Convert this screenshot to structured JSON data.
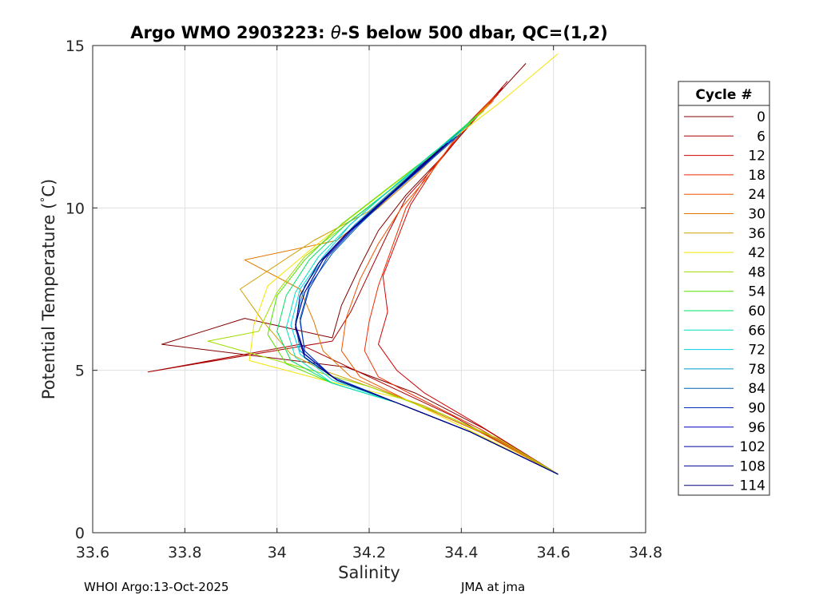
{
  "chart_data": {
    "type": "line",
    "title_prefix": "Argo WMO 2903223: ",
    "title_symbol": "θ",
    "title_suffix": "-S below 500 dbar,  QC=(1,2)",
    "xlabel": "Salinity",
    "ylabel_text": "Potential Temperature (",
    "ylabel_degree": "°",
    "ylabel_unit": "C)",
    "xlim": [
      33.6,
      34.8
    ],
    "ylim": [
      0,
      15
    ],
    "xticks": [
      33.6,
      33.8,
      34.0,
      34.2,
      34.4,
      34.6,
      34.8
    ],
    "xtick_labels": [
      "33.6",
      "33.8",
      "34",
      "34.2",
      "34.4",
      "34.6",
      "34.8"
    ],
    "yticks": [
      0,
      5,
      10,
      15
    ],
    "ytick_labels": [
      "0",
      "5",
      "10",
      "15"
    ],
    "grid": true,
    "legend_title": "Cycle #",
    "legend_position": "right-outside",
    "series": [
      {
        "name": "0",
        "color": "#800000",
        "points": [
          [
            34.54,
            14.45
          ],
          [
            34.44,
            12.9
          ],
          [
            34.36,
            11.6
          ],
          [
            34.28,
            10.4
          ],
          [
            34.22,
            9.3
          ],
          [
            34.18,
            8.2
          ],
          [
            34.14,
            7.0
          ],
          [
            34.12,
            6.0
          ],
          [
            33.93,
            6.6
          ],
          [
            33.75,
            5.8
          ],
          [
            34.15,
            5.1
          ],
          [
            34.3,
            4.3
          ],
          [
            34.45,
            3.2
          ],
          [
            34.61,
            1.8
          ]
        ]
      },
      {
        "name": "6",
        "color": "#aa0000",
        "points": [
          [
            34.5,
            13.9
          ],
          [
            34.42,
            12.6
          ],
          [
            34.35,
            11.4
          ],
          [
            34.28,
            10.3
          ],
          [
            34.24,
            9.2
          ],
          [
            34.2,
            8.0
          ],
          [
            34.16,
            6.8
          ],
          [
            34.12,
            5.9
          ],
          [
            33.72,
            4.95
          ],
          [
            34.05,
            5.8
          ],
          [
            34.2,
            4.8
          ],
          [
            34.38,
            3.6
          ],
          [
            34.61,
            1.8
          ]
        ]
      },
      {
        "name": "12",
        "color": "#d40000",
        "points": [
          [
            34.49,
            13.7
          ],
          [
            34.4,
            12.4
          ],
          [
            34.34,
            11.2
          ],
          [
            34.29,
            10.1
          ],
          [
            34.26,
            9.0
          ],
          [
            34.23,
            7.9
          ],
          [
            34.24,
            6.8
          ],
          [
            34.22,
            5.8
          ],
          [
            34.26,
            5.0
          ],
          [
            34.32,
            4.3
          ],
          [
            34.44,
            3.3
          ],
          [
            34.61,
            1.8
          ]
        ]
      },
      {
        "name": "18",
        "color": "#f22a00",
        "points": [
          [
            34.48,
            13.5
          ],
          [
            34.4,
            12.3
          ],
          [
            34.33,
            11.1
          ],
          [
            34.28,
            10.0
          ],
          [
            34.25,
            8.8
          ],
          [
            34.22,
            7.6
          ],
          [
            34.2,
            6.5
          ],
          [
            34.19,
            5.6
          ],
          [
            34.22,
            4.8
          ],
          [
            34.3,
            4.2
          ],
          [
            34.44,
            3.2
          ],
          [
            34.61,
            1.8
          ]
        ]
      },
      {
        "name": "24",
        "color": "#f05200",
        "points": [
          [
            34.47,
            13.4
          ],
          [
            34.39,
            12.2
          ],
          [
            34.33,
            11.0
          ],
          [
            34.27,
            10.0
          ],
          [
            34.22,
            8.9
          ],
          [
            34.18,
            7.8
          ],
          [
            34.15,
            6.6
          ],
          [
            34.14,
            5.6
          ],
          [
            34.18,
            4.8
          ],
          [
            34.28,
            4.1
          ],
          [
            34.44,
            3.1
          ],
          [
            34.61,
            1.8
          ]
        ]
      },
      {
        "name": "30",
        "color": "#e07800",
        "points": [
          [
            34.47,
            13.3
          ],
          [
            34.38,
            12.1
          ],
          [
            34.3,
            11.0
          ],
          [
            34.22,
            10.0
          ],
          [
            34.13,
            9.0
          ],
          [
            33.93,
            8.4
          ],
          [
            34.05,
            7.5
          ],
          [
            34.08,
            6.5
          ],
          [
            34.1,
            5.6
          ],
          [
            34.16,
            4.8
          ],
          [
            34.28,
            4.1
          ],
          [
            34.44,
            3.1
          ],
          [
            34.61,
            1.8
          ]
        ]
      },
      {
        "name": "36",
        "color": "#d0a000",
        "points": [
          [
            34.46,
            13.2
          ],
          [
            34.37,
            12.0
          ],
          [
            34.28,
            10.9
          ],
          [
            34.2,
            9.9
          ],
          [
            34.08,
            9.0
          ],
          [
            33.92,
            7.5
          ],
          [
            33.97,
            6.5
          ],
          [
            34.03,
            5.5
          ],
          [
            34.1,
            5.0
          ],
          [
            34.2,
            4.5
          ],
          [
            34.32,
            3.9
          ],
          [
            34.46,
            3.0
          ],
          [
            34.61,
            1.8
          ]
        ]
      },
      {
        "name": "42",
        "color": "#f5e400",
        "points": [
          [
            34.61,
            14.75
          ],
          [
            34.48,
            13.2
          ],
          [
            34.36,
            11.9
          ],
          [
            34.26,
            10.8
          ],
          [
            34.16,
            9.7
          ],
          [
            34.08,
            8.8
          ],
          [
            33.98,
            7.6
          ],
          [
            33.95,
            6.4
          ],
          [
            33.94,
            5.3
          ],
          [
            34.1,
            4.7
          ],
          [
            34.28,
            4.1
          ],
          [
            34.44,
            3.0
          ],
          [
            34.61,
            1.8
          ]
        ]
      },
      {
        "name": "48",
        "color": "#a0dc00",
        "points": [
          [
            34.45,
            13.0
          ],
          [
            34.36,
            11.9
          ],
          [
            34.26,
            10.7
          ],
          [
            34.16,
            9.6
          ],
          [
            34.06,
            8.5
          ],
          [
            34.0,
            7.4
          ],
          [
            33.96,
            6.2
          ],
          [
            33.85,
            5.9
          ],
          [
            34.05,
            5.1
          ],
          [
            34.2,
            4.5
          ],
          [
            34.35,
            3.7
          ],
          [
            34.48,
            2.9
          ],
          [
            34.61,
            1.8
          ]
        ]
      },
      {
        "name": "54",
        "color": "#50e000",
        "points": [
          [
            34.44,
            12.9
          ],
          [
            34.35,
            11.8
          ],
          [
            34.24,
            10.6
          ],
          [
            34.14,
            9.5
          ],
          [
            34.06,
            8.4
          ],
          [
            34.0,
            7.3
          ],
          [
            33.98,
            6.1
          ],
          [
            34.02,
            5.2
          ],
          [
            34.12,
            4.6
          ],
          [
            34.26,
            4.0
          ],
          [
            34.42,
            3.1
          ],
          [
            34.61,
            1.8
          ]
        ]
      },
      {
        "name": "60",
        "color": "#00e060",
        "points": [
          [
            34.43,
            12.8
          ],
          [
            34.34,
            11.7
          ],
          [
            34.24,
            10.5
          ],
          [
            34.15,
            9.5
          ],
          [
            34.07,
            8.4
          ],
          [
            34.02,
            7.3
          ],
          [
            34.0,
            6.2
          ],
          [
            34.03,
            5.3
          ],
          [
            34.12,
            4.6
          ],
          [
            34.26,
            4.0
          ],
          [
            34.42,
            3.1
          ],
          [
            34.61,
            1.8
          ]
        ]
      },
      {
        "name": "66",
        "color": "#00e0c0",
        "points": [
          [
            34.42,
            12.6
          ],
          [
            34.33,
            11.6
          ],
          [
            34.24,
            10.5
          ],
          [
            34.16,
            9.5
          ],
          [
            34.09,
            8.5
          ],
          [
            34.04,
            7.4
          ],
          [
            34.02,
            6.3
          ],
          [
            34.04,
            5.4
          ],
          [
            34.12,
            4.6
          ],
          [
            34.26,
            4.0
          ],
          [
            34.42,
            3.1
          ],
          [
            34.61,
            1.8
          ]
        ]
      },
      {
        "name": "72",
        "color": "#00d0e8",
        "points": [
          [
            34.41,
            12.5
          ],
          [
            34.33,
            11.5
          ],
          [
            34.24,
            10.5
          ],
          [
            34.16,
            9.5
          ],
          [
            34.1,
            8.5
          ],
          [
            34.05,
            7.5
          ],
          [
            34.03,
            6.4
          ],
          [
            34.05,
            5.5
          ],
          [
            34.12,
            4.7
          ],
          [
            34.26,
            4.0
          ],
          [
            34.42,
            3.1
          ],
          [
            34.61,
            1.8
          ]
        ]
      },
      {
        "name": "78",
        "color": "#0098d0",
        "points": [
          [
            34.4,
            12.4
          ],
          [
            34.32,
            11.4
          ],
          [
            34.24,
            10.4
          ],
          [
            34.17,
            9.5
          ],
          [
            34.11,
            8.6
          ],
          [
            34.06,
            7.6
          ],
          [
            34.04,
            6.5
          ],
          [
            34.05,
            5.6
          ],
          [
            34.12,
            4.8
          ],
          [
            34.26,
            4.0
          ],
          [
            34.42,
            3.1
          ],
          [
            34.61,
            1.8
          ]
        ]
      },
      {
        "name": "84",
        "color": "#0060b0",
        "points": [
          [
            34.4,
            12.3
          ],
          [
            34.32,
            11.3
          ],
          [
            34.24,
            10.3
          ],
          [
            34.18,
            9.5
          ],
          [
            34.12,
            8.6
          ],
          [
            34.07,
            7.6
          ],
          [
            34.05,
            6.6
          ],
          [
            34.06,
            5.6
          ],
          [
            34.12,
            4.8
          ],
          [
            34.26,
            4.0
          ],
          [
            34.42,
            3.1
          ],
          [
            34.61,
            1.8
          ]
        ]
      },
      {
        "name": "90",
        "color": "#0030c0",
        "points": [
          [
            34.39,
            12.2
          ],
          [
            34.31,
            11.3
          ],
          [
            34.24,
            10.3
          ],
          [
            34.17,
            9.4
          ],
          [
            34.11,
            8.5
          ],
          [
            34.07,
            7.5
          ],
          [
            34.05,
            6.5
          ],
          [
            34.06,
            5.6
          ],
          [
            34.12,
            4.8
          ],
          [
            34.26,
            4.0
          ],
          [
            34.42,
            3.1
          ],
          [
            34.61,
            1.8
          ]
        ]
      },
      {
        "name": "96",
        "color": "#0000c0",
        "points": [
          [
            34.38,
            12.1
          ],
          [
            34.31,
            11.2
          ],
          [
            34.23,
            10.2
          ],
          [
            34.16,
            9.3
          ],
          [
            34.1,
            8.4
          ],
          [
            34.06,
            7.4
          ],
          [
            34.04,
            6.4
          ],
          [
            34.06,
            5.5
          ],
          [
            34.13,
            4.7
          ],
          [
            34.26,
            4.0
          ],
          [
            34.42,
            3.1
          ],
          [
            34.61,
            1.8
          ]
        ]
      },
      {
        "name": "102",
        "color": "#0000a0",
        "points": [
          [
            34.37,
            12.0
          ],
          [
            34.3,
            11.1
          ],
          [
            34.23,
            10.2
          ],
          [
            34.16,
            9.3
          ],
          [
            34.1,
            8.4
          ],
          [
            34.06,
            7.4
          ],
          [
            34.04,
            6.4
          ],
          [
            34.06,
            5.5
          ],
          [
            34.13,
            4.7
          ],
          [
            34.26,
            4.0
          ],
          [
            34.42,
            3.1
          ],
          [
            34.61,
            1.8
          ]
        ]
      },
      {
        "name": "108",
        "color": "#000090",
        "points": [
          [
            34.37,
            12.0
          ],
          [
            34.3,
            11.1
          ],
          [
            34.22,
            10.1
          ],
          [
            34.15,
            9.2
          ],
          [
            34.09,
            8.3
          ],
          [
            34.05,
            7.3
          ],
          [
            34.04,
            6.3
          ],
          [
            34.06,
            5.4
          ],
          [
            34.13,
            4.7
          ],
          [
            34.26,
            4.0
          ],
          [
            34.42,
            3.1
          ],
          [
            34.61,
            1.8
          ]
        ]
      },
      {
        "name": "114",
        "color": "#000080",
        "points": [
          [
            34.36,
            11.9
          ],
          [
            34.29,
            11.0
          ],
          [
            34.22,
            10.1
          ],
          [
            34.15,
            9.2
          ],
          [
            34.09,
            8.3
          ],
          [
            34.05,
            7.3
          ],
          [
            34.04,
            6.3
          ],
          [
            34.06,
            5.4
          ],
          [
            34.13,
            4.7
          ],
          [
            34.26,
            4.0
          ],
          [
            34.42,
            3.1
          ],
          [
            34.61,
            1.8
          ]
        ]
      }
    ]
  },
  "footer": {
    "left": "WHOI Argo:13-Oct-2025",
    "right": "JMA at jma"
  }
}
